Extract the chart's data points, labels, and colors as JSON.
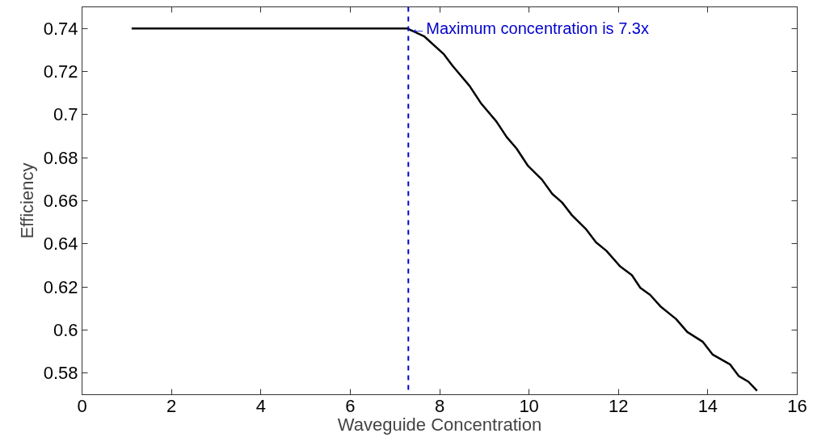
{
  "chart_data": {
    "type": "line",
    "xlabel": "Waveguide Concentration",
    "ylabel": "Efficiency",
    "xlim": [
      0,
      16
    ],
    "ylim": [
      0.57,
      0.75
    ],
    "xticks": [
      0,
      2,
      4,
      6,
      8,
      10,
      12,
      14,
      16
    ],
    "yticks": [
      0.58,
      0.6,
      0.62,
      0.64,
      0.66,
      0.68,
      0.7,
      0.72,
      0.74
    ],
    "grid": false,
    "line_style": "solid",
    "series": [
      {
        "color": "#000000",
        "x": [
          1.11,
          7.27,
          7.65,
          8.1,
          8.29,
          8.67,
          8.92,
          9.27,
          9.5,
          9.72,
          9.97,
          10.29,
          10.52,
          10.74,
          10.96,
          11.28,
          11.5,
          11.73,
          12.04,
          12.3,
          12.49,
          12.71,
          12.94,
          13.29,
          13.54,
          13.89,
          14.11,
          14.5,
          14.69,
          14.91,
          15.1
        ],
        "values": [
          0.74,
          0.74,
          0.7364,
          0.7279,
          0.7226,
          0.7133,
          0.7054,
          0.6968,
          0.6896,
          0.6843,
          0.6764,
          0.6698,
          0.6632,
          0.6592,
          0.6533,
          0.6467,
          0.6407,
          0.6368,
          0.6295,
          0.6255,
          0.6196,
          0.6163,
          0.611,
          0.6051,
          0.5991,
          0.5945,
          0.5886,
          0.584,
          0.5787,
          0.576,
          0.5718
        ]
      }
    ],
    "ref_lines": [
      {
        "axis": "x",
        "value": 7.3,
        "color": "#0000cc",
        "line_style": "dashed"
      }
    ],
    "annotations": [
      {
        "text": "←Maximum concentration is 7.3x",
        "x": 7.3,
        "y": 0.74
      }
    ]
  }
}
